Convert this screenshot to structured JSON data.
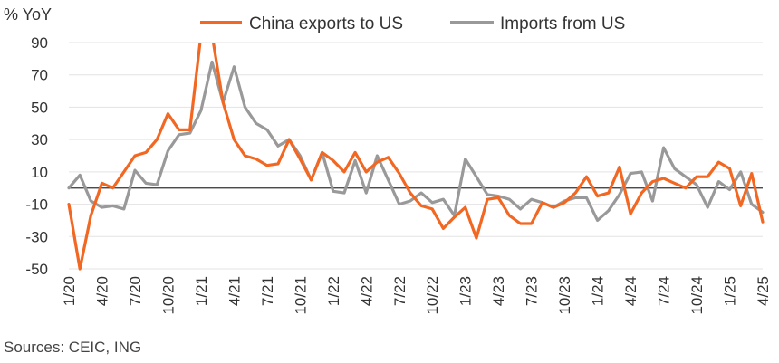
{
  "chart_data": {
    "type": "line",
    "ylabel": "% YoY",
    "ylim": [
      -50,
      90
    ],
    "yticks": [
      90,
      70,
      50,
      30,
      10,
      -10,
      -30,
      -50
    ],
    "x": [
      "1/20",
      "2/20",
      "3/20",
      "4/20",
      "5/20",
      "6/20",
      "7/20",
      "8/20",
      "9/20",
      "10/20",
      "11/20",
      "12/20",
      "1/21",
      "2/21",
      "3/21",
      "4/21",
      "5/21",
      "6/21",
      "7/21",
      "8/21",
      "9/21",
      "10/21",
      "11/21",
      "12/21",
      "1/22",
      "2/22",
      "3/22",
      "4/22",
      "5/22",
      "6/22",
      "7/22",
      "8/22",
      "9/22",
      "10/22",
      "11/22",
      "12/22",
      "1/23",
      "2/23",
      "3/23",
      "4/23",
      "5/23",
      "6/23",
      "7/23",
      "8/23",
      "9/23",
      "10/23",
      "11/23",
      "12/23",
      "1/24",
      "2/24",
      "3/24",
      "4/24",
      "5/24",
      "6/24",
      "7/24",
      "8/24",
      "9/24",
      "10/24",
      "11/24",
      "12/24",
      "1/25",
      "2/25",
      "3/25",
      "4/25"
    ],
    "xtick_labels": [
      "1/20",
      "4/20",
      "7/20",
      "10/20",
      "1/21",
      "4/21",
      "7/21",
      "10/21",
      "1/22",
      "4/22",
      "7/22",
      "10/22",
      "1/23",
      "4/23",
      "7/23",
      "10/23",
      "1/24",
      "4/24",
      "7/24",
      "10/24",
      "1/25",
      "4/25"
    ],
    "series": [
      {
        "name": "China exports to US",
        "color": "#f26722",
        "values": [
          -10,
          -50,
          -17,
          3,
          0,
          10,
          20,
          22,
          30,
          46,
          36,
          36,
          95,
          95,
          53,
          30,
          20,
          18,
          14,
          15,
          30,
          18,
          5,
          22,
          17,
          10,
          22,
          10,
          16,
          19,
          9,
          -3,
          -11,
          -13,
          -25,
          -18,
          -12,
          -31,
          -7,
          -6,
          -17,
          -22,
          -22,
          -9,
          -12,
          -9,
          -3,
          7,
          -5,
          -3,
          13,
          -16,
          -3,
          4,
          6,
          3,
          0,
          7,
          7,
          16,
          12,
          -11,
          9,
          -21
        ]
      },
      {
        "name": "Imports from US",
        "color": "#999999",
        "values": [
          0,
          8,
          -8,
          -12,
          -11,
          -13,
          11,
          3,
          2,
          23,
          33,
          34,
          48,
          78,
          53,
          75,
          50,
          40,
          36,
          26,
          30,
          20,
          5,
          22,
          -2,
          -3,
          17,
          -3,
          20,
          5,
          -10,
          -8,
          -3,
          -9,
          -7,
          -17,
          18,
          7,
          -4,
          -5,
          -7,
          -13,
          -7,
          -9,
          -12,
          -8,
          -6,
          -6,
          -20,
          -14,
          -4,
          9,
          10,
          -8,
          25,
          12,
          7,
          2,
          -12,
          4,
          -1,
          10,
          -10,
          -15
        ]
      }
    ]
  },
  "footer": {
    "source": "Sources: CEIC, ING"
  }
}
